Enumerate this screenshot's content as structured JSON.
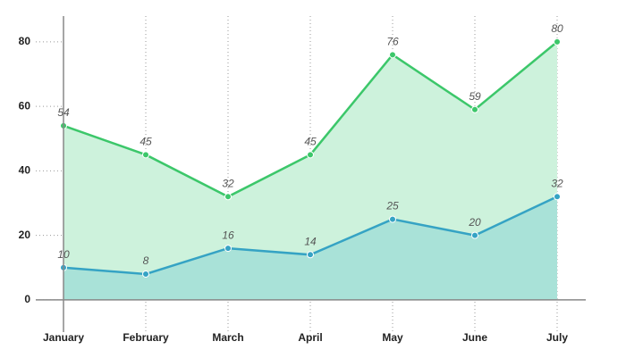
{
  "chart_data": {
    "type": "area",
    "categories": [
      "January",
      "February",
      "March",
      "April",
      "May",
      "June",
      "July"
    ],
    "series": [
      {
        "color": "#3cc76a",
        "fill": "#cdf2dc",
        "values": [
          54,
          45,
          32,
          45,
          76,
          59,
          80
        ]
      },
      {
        "color": "#35a3c4",
        "fill": "#a9e2d8",
        "values": [
          10,
          8,
          16,
          14,
          25,
          20,
          32
        ]
      }
    ],
    "ylim": [
      -10,
      88
    ],
    "yticks": [
      0,
      20,
      40,
      60,
      80
    ],
    "grid": true
  }
}
